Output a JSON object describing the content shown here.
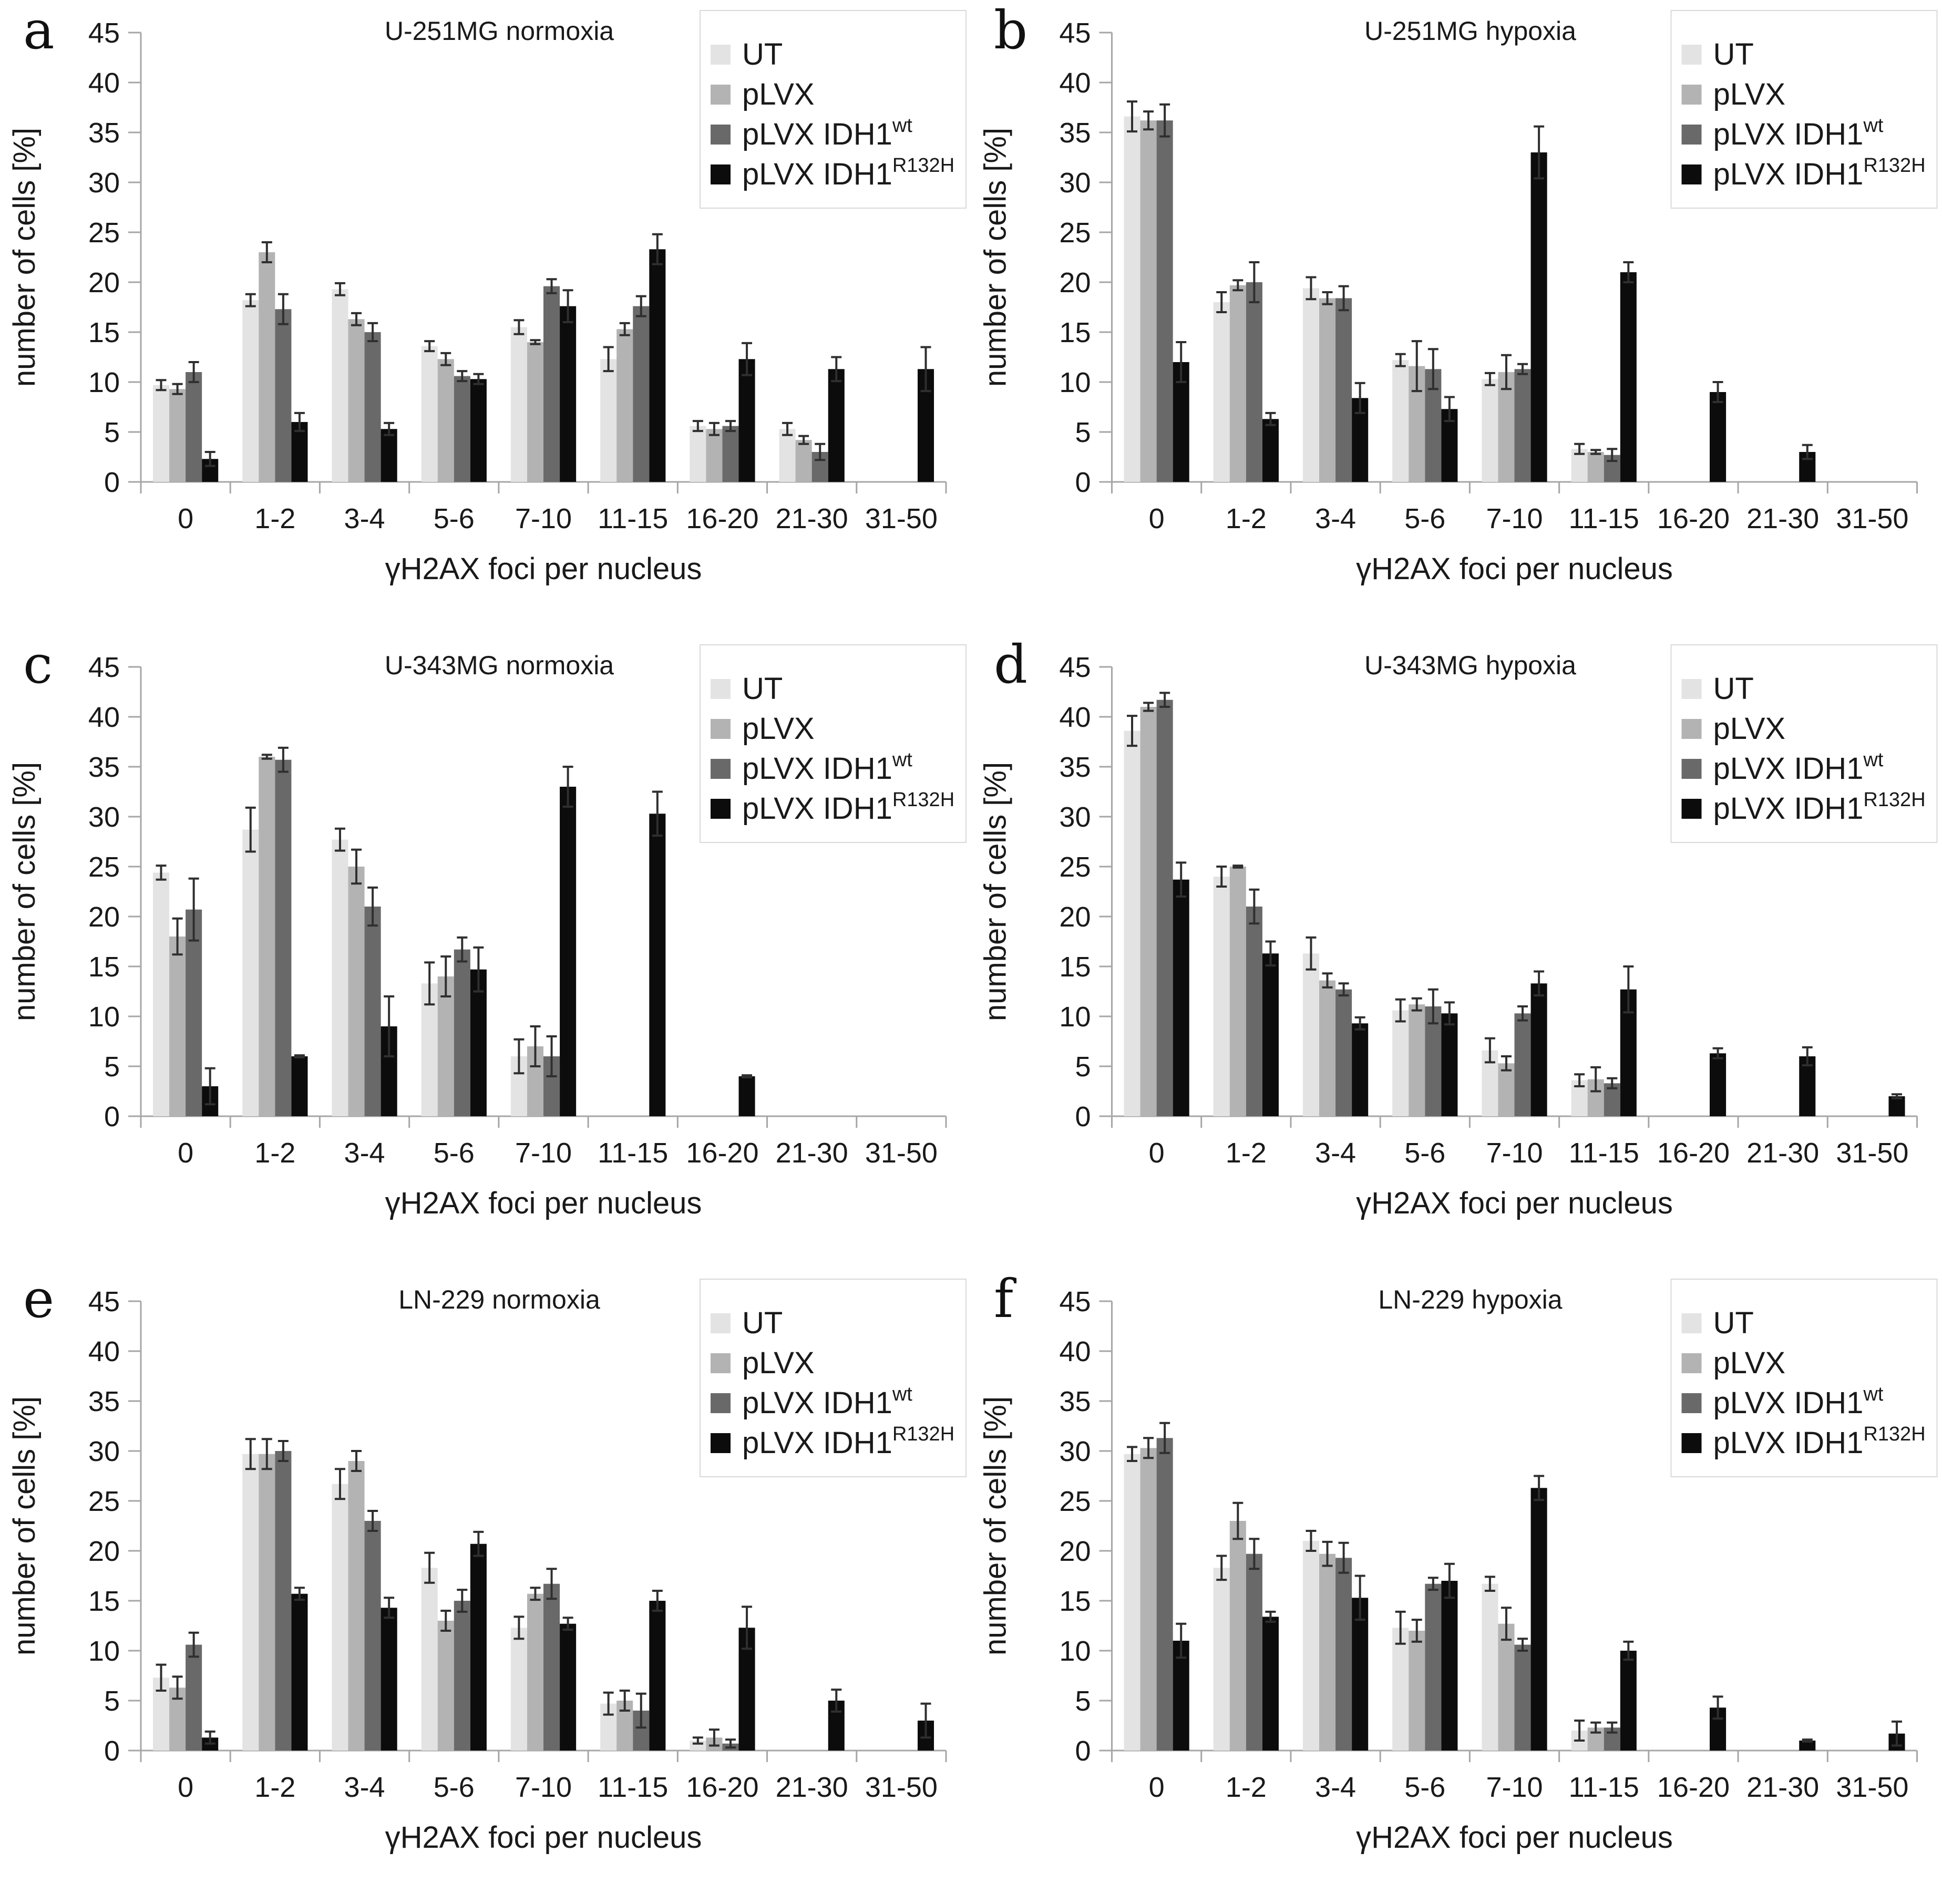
{
  "figure": {
    "axes": {
      "y_label": "number of cells [%]",
      "x_label": "γH2AX foci per nucleus",
      "y_ticks": [
        0,
        5,
        10,
        15,
        20,
        25,
        30,
        35,
        40,
        45
      ],
      "ylim": [
        0,
        45
      ],
      "grid": "off",
      "axis_color": "#a6a6a6"
    },
    "legend": {
      "position": "top-right",
      "border_color": "#d9d9d9",
      "items": [
        {
          "label": "UT",
          "sup": "",
          "color": "#e3e3e3"
        },
        {
          "label": "pLVX",
          "sup": "",
          "color": "#b3b3b3"
        },
        {
          "label": "pLVX IDH1",
          "sup": "wt",
          "color": "#696969"
        },
        {
          "label": "pLVX IDH1",
          "sup": "R132H",
          "color": "#0c0c0c"
        }
      ]
    },
    "error_bar_color": "#2f2f2f"
  },
  "chart_data": [
    {
      "panel": "a",
      "type": "bar",
      "title": "U-251MG normoxia",
      "xlabel": "γH2AX foci per nucleus",
      "ylabel": "number of cells [%]",
      "ylim": [
        0,
        45
      ],
      "categories": [
        "0",
        "1-2",
        "3-4",
        "5-6",
        "7-10",
        "11-15",
        "16-20",
        "21-30",
        "31-50"
      ],
      "series": [
        {
          "name": "UT",
          "values": [
            9.7,
            18.2,
            19.3,
            13.6,
            15.5,
            12.3,
            5.6,
            5.3,
            0
          ],
          "errors": [
            0.5,
            0.6,
            0.6,
            0.5,
            0.7,
            1.2,
            0.5,
            0.6,
            0
          ]
        },
        {
          "name": "pLVX",
          "values": [
            9.3,
            23.0,
            16.3,
            12.3,
            14.0,
            15.3,
            5.3,
            4.2,
            0
          ],
          "errors": [
            0.5,
            1.0,
            0.6,
            0.6,
            0.2,
            0.6,
            0.6,
            0.4,
            0
          ]
        },
        {
          "name": "pLVX IDH1wt",
          "values": [
            11.0,
            17.3,
            15.0,
            10.6,
            19.6,
            17.6,
            5.6,
            3.0,
            0
          ],
          "errors": [
            1.0,
            1.5,
            0.9,
            0.5,
            0.7,
            1.0,
            0.5,
            0.8,
            0
          ]
        },
        {
          "name": "pLVX IDH1R132H",
          "values": [
            2.3,
            6.0,
            5.3,
            10.3,
            17.6,
            23.3,
            12.3,
            11.3,
            11.3
          ],
          "errors": [
            0.7,
            0.9,
            0.6,
            0.5,
            1.6,
            1.5,
            1.6,
            1.2,
            2.2
          ]
        }
      ]
    },
    {
      "panel": "b",
      "type": "bar",
      "title": "U-251MG hypoxia",
      "xlabel": "γH2AX foci per nucleus",
      "ylabel": "number of cells [%]",
      "ylim": [
        0,
        45
      ],
      "categories": [
        "0",
        "1-2",
        "3-4",
        "5-6",
        "7-10",
        "11-15",
        "16-20",
        "21-30",
        "31-50"
      ],
      "series": [
        {
          "name": "UT",
          "values": [
            36.6,
            18.0,
            19.4,
            12.2,
            10.3,
            3.3,
            0,
            0,
            0
          ],
          "errors": [
            1.5,
            1.0,
            1.1,
            0.6,
            0.6,
            0.5,
            0,
            0,
            0
          ]
        },
        {
          "name": "pLVX",
          "values": [
            36.2,
            19.7,
            18.4,
            11.6,
            11.0,
            3.0,
            0,
            0,
            0
          ],
          "errors": [
            0.9,
            0.5,
            0.6,
            2.5,
            1.7,
            0.2,
            0,
            0,
            0
          ]
        },
        {
          "name": "pLVX IDH1wt",
          "values": [
            36.2,
            20.0,
            18.4,
            11.3,
            11.3,
            2.7,
            0,
            0,
            0
          ],
          "errors": [
            1.6,
            2.0,
            1.2,
            2.0,
            0.5,
            0.6,
            0,
            0,
            0
          ]
        },
        {
          "name": "pLVX IDH1R132H",
          "values": [
            12.0,
            6.3,
            8.4,
            7.3,
            33.0,
            21.0,
            9.0,
            3.0,
            0
          ],
          "errors": [
            2.0,
            0.6,
            1.5,
            1.2,
            2.6,
            1.0,
            1.0,
            0.7,
            0
          ]
        }
      ]
    },
    {
      "panel": "c",
      "type": "bar",
      "title": "U-343MG normoxia",
      "xlabel": "γH2AX foci per nucleus",
      "ylabel": "number of cells [%]",
      "ylim": [
        0,
        45
      ],
      "categories": [
        "0",
        "1-2",
        "3-4",
        "5-6",
        "7-10",
        "11-15",
        "16-20",
        "21-30",
        "31-50"
      ],
      "series": [
        {
          "name": "UT",
          "values": [
            24.4,
            28.7,
            27.7,
            13.3,
            6.0,
            0,
            0,
            0,
            0
          ],
          "errors": [
            0.7,
            2.2,
            1.1,
            2.1,
            1.7,
            0,
            0,
            0,
            0
          ]
        },
        {
          "name": "pLVX",
          "values": [
            18.0,
            36.0,
            25.0,
            14.0,
            7.0,
            0,
            0,
            0,
            0
          ],
          "errors": [
            1.8,
            0.2,
            1.7,
            2.0,
            2.0,
            0,
            0,
            0,
            0
          ]
        },
        {
          "name": "pLVX IDH1wt",
          "values": [
            20.7,
            35.7,
            21.0,
            16.7,
            6.0,
            0,
            0,
            0,
            0
          ],
          "errors": [
            3.1,
            1.2,
            1.9,
            1.2,
            2.0,
            0,
            0,
            0,
            0
          ]
        },
        {
          "name": "pLVX IDH1R132H",
          "values": [
            3.0,
            6.0,
            9.0,
            14.7,
            33.0,
            30.3,
            4.0,
            0,
            0
          ],
          "errors": [
            1.8,
            0.1,
            3.0,
            2.2,
            2.0,
            2.2,
            0.1,
            0,
            0
          ]
        }
      ]
    },
    {
      "panel": "d",
      "type": "bar",
      "title": "U-343MG hypoxia",
      "xlabel": "γH2AX foci per nucleus",
      "ylabel": "number of cells [%]",
      "ylim": [
        0,
        45
      ],
      "categories": [
        "0",
        "1-2",
        "3-4",
        "5-6",
        "7-10",
        "11-15",
        "16-20",
        "21-30",
        "31-50"
      ],
      "series": [
        {
          "name": "UT",
          "values": [
            38.6,
            24.0,
            16.3,
            10.6,
            6.6,
            3.6,
            0,
            0,
            0
          ],
          "errors": [
            1.5,
            1.0,
            1.6,
            1.1,
            1.2,
            0.6,
            0,
            0,
            0
          ]
        },
        {
          "name": "pLVX",
          "values": [
            41.0,
            25.0,
            13.6,
            11.2,
            5.3,
            3.7,
            0,
            0,
            0
          ],
          "errors": [
            0.4,
            0.1,
            0.7,
            0.6,
            0.7,
            1.2,
            0,
            0,
            0
          ]
        },
        {
          "name": "pLVX IDH1wt",
          "values": [
            41.7,
            21.0,
            12.7,
            11.0,
            10.3,
            3.3,
            0,
            0,
            0
          ],
          "errors": [
            0.7,
            1.7,
            0.6,
            1.7,
            0.7,
            0.5,
            0,
            0,
            0
          ]
        },
        {
          "name": "pLVX IDH1R132H",
          "values": [
            23.7,
            16.3,
            9.3,
            10.3,
            13.3,
            12.7,
            6.3,
            6.0,
            2.0
          ],
          "errors": [
            1.7,
            1.2,
            0.6,
            1.1,
            1.2,
            2.3,
            0.5,
            0.9,
            0.2
          ]
        }
      ]
    },
    {
      "panel": "e",
      "type": "bar",
      "title": "LN-229 normoxia",
      "xlabel": "γH2AX foci per nucleus",
      "ylabel": "number of cells [%]",
      "ylim": [
        0,
        45
      ],
      "categories": [
        "0",
        "1-2",
        "3-4",
        "5-6",
        "7-10",
        "11-15",
        "16-20",
        "21-30",
        "31-50"
      ],
      "series": [
        {
          "name": "UT",
          "values": [
            7.3,
            29.7,
            26.7,
            18.3,
            12.3,
            4.7,
            1.0,
            0,
            0
          ],
          "errors": [
            1.3,
            1.5,
            1.5,
            1.5,
            1.1,
            1.1,
            0.3,
            0,
            0
          ]
        },
        {
          "name": "pLVX",
          "values": [
            6.3,
            29.7,
            29.0,
            13.0,
            15.7,
            5.0,
            1.3,
            0,
            0
          ],
          "errors": [
            1.1,
            1.5,
            1.0,
            1.0,
            0.6,
            1.0,
            0.8,
            0,
            0
          ]
        },
        {
          "name": "pLVX IDH1wt",
          "values": [
            10.6,
            30.0,
            23.0,
            15.0,
            16.7,
            4.0,
            0.7,
            0,
            0
          ],
          "errors": [
            1.2,
            1.0,
            1.0,
            1.1,
            1.5,
            1.7,
            0.4,
            0,
            0
          ]
        },
        {
          "name": "pLVX IDH1R132H",
          "values": [
            1.3,
            15.7,
            14.3,
            20.7,
            12.7,
            15.0,
            12.3,
            5.0,
            3.0
          ],
          "errors": [
            0.6,
            0.6,
            1.0,
            1.2,
            0.6,
            1.0,
            2.1,
            1.1,
            1.7
          ]
        }
      ]
    },
    {
      "panel": "f",
      "type": "bar",
      "title": "LN-229 hypoxia",
      "xlabel": "γH2AX foci per nucleus",
      "ylabel": "number of cells [%]",
      "ylim": [
        0,
        45
      ],
      "categories": [
        "0",
        "1-2",
        "3-4",
        "5-6",
        "7-10",
        "11-15",
        "16-20",
        "21-30",
        "31-50"
      ],
      "series": [
        {
          "name": "UT",
          "values": [
            29.7,
            18.3,
            21.0,
            12.3,
            16.7,
            2.0,
            0,
            0,
            0
          ],
          "errors": [
            0.7,
            1.2,
            1.0,
            1.6,
            0.7,
            1.0,
            0,
            0,
            0
          ]
        },
        {
          "name": "pLVX",
          "values": [
            30.3,
            23.0,
            19.7,
            12.0,
            12.7,
            2.3,
            0,
            0,
            0
          ],
          "errors": [
            1.0,
            1.8,
            1.2,
            1.1,
            1.6,
            0.5,
            0,
            0,
            0
          ]
        },
        {
          "name": "pLVX IDH1wt",
          "values": [
            31.3,
            19.7,
            19.3,
            16.7,
            10.6,
            2.3,
            0,
            0,
            0
          ],
          "errors": [
            1.5,
            1.5,
            1.5,
            0.6,
            0.6,
            0.5,
            0,
            0,
            0
          ]
        },
        {
          "name": "pLVX IDH1R132H",
          "values": [
            11.0,
            13.4,
            15.3,
            17.0,
            26.3,
            10.0,
            4.3,
            1.0,
            1.7
          ],
          "errors": [
            1.7,
            0.5,
            2.2,
            1.7,
            1.2,
            0.9,
            1.1,
            0.1,
            1.2
          ]
        }
      ]
    }
  ]
}
